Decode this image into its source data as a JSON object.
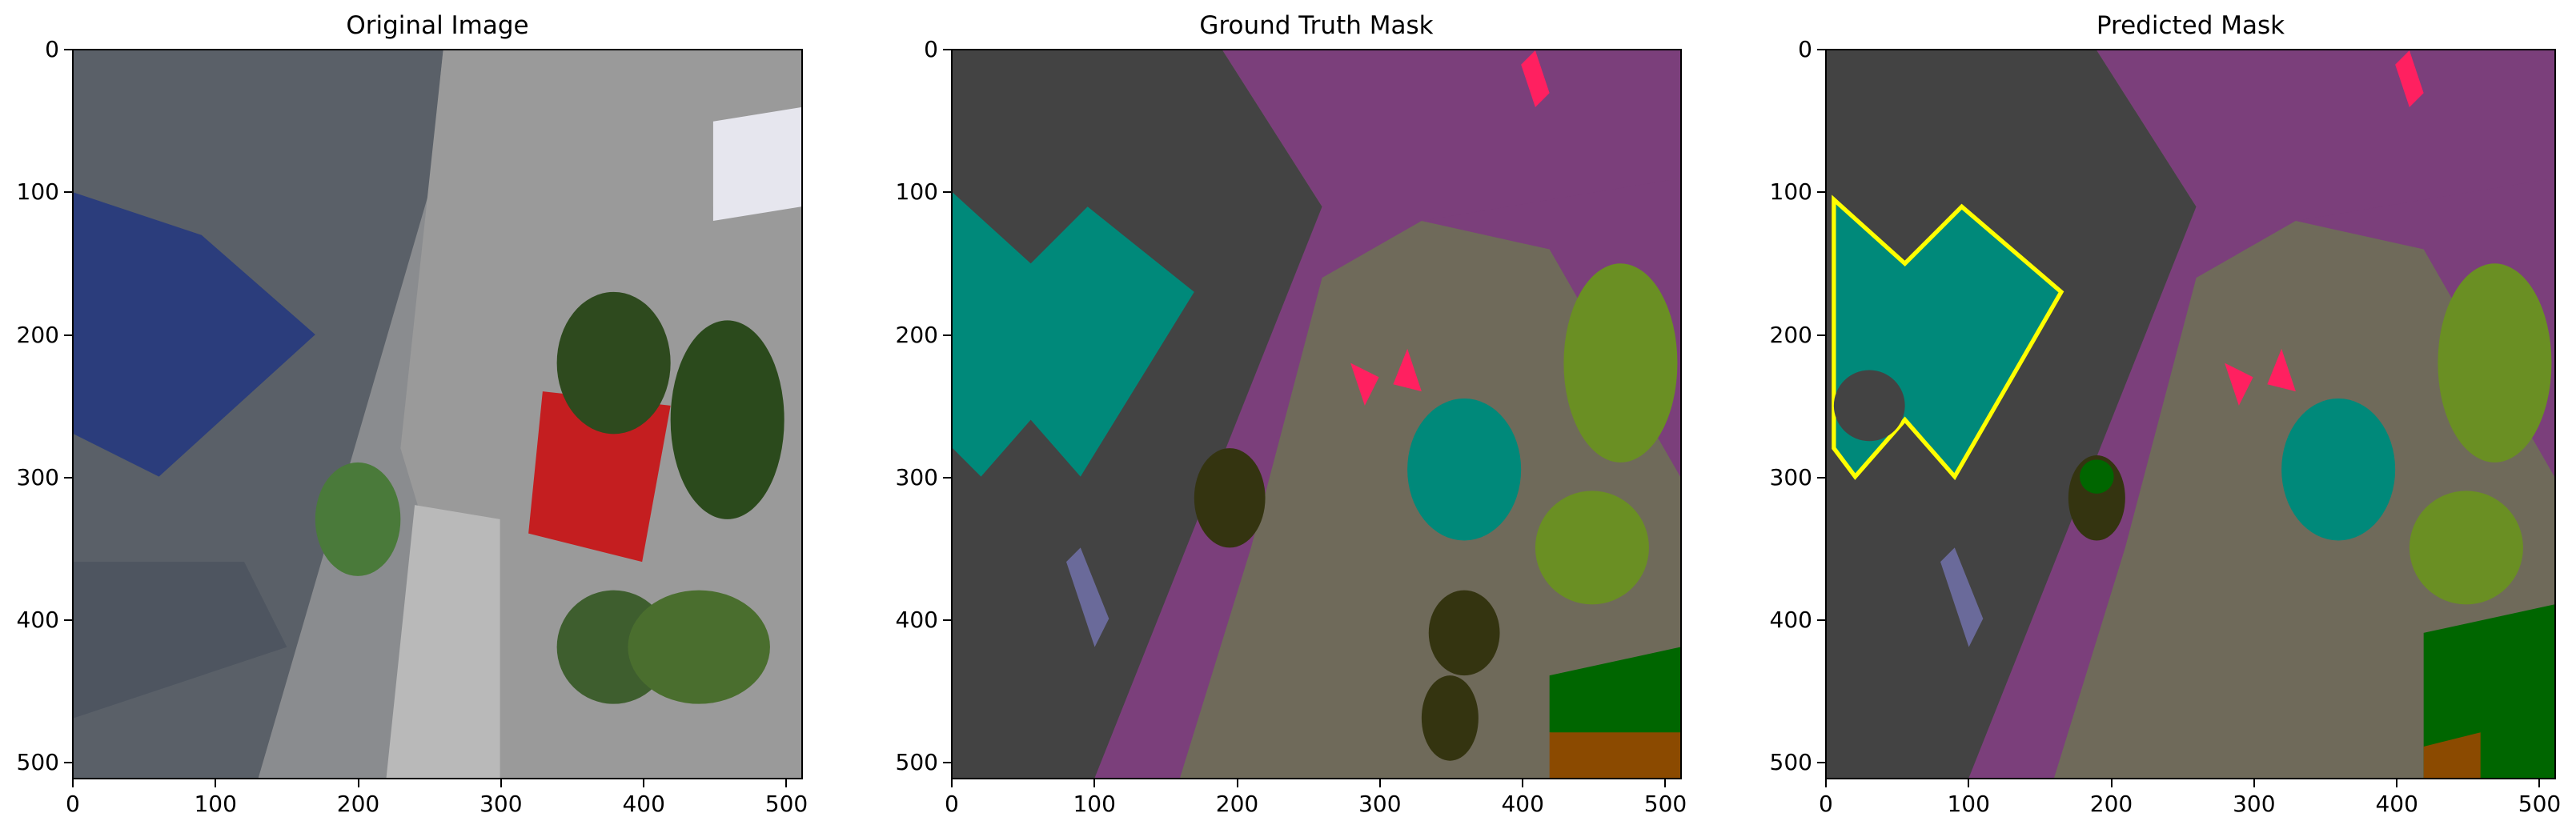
{
  "panels": [
    {
      "title": "Original Image"
    },
    {
      "title": "Ground Truth Mask"
    },
    {
      "title": "Predicted Mask"
    }
  ],
  "ticks": {
    "x": [
      "0",
      "100",
      "200",
      "300",
      "400",
      "500"
    ],
    "y": [
      "0",
      "100",
      "200",
      "300",
      "400",
      "500"
    ]
  },
  "palette": {
    "building": "#434343",
    "road": "#7b3f7b",
    "ground": "#6f6a5a",
    "vegetation": "#6a8f23",
    "water_roof": "#00897a",
    "tree_dark": "#343410",
    "grass": "#006600",
    "dirt": "#8b4a00",
    "person": "#ff2060",
    "edge": "#ffff00"
  }
}
